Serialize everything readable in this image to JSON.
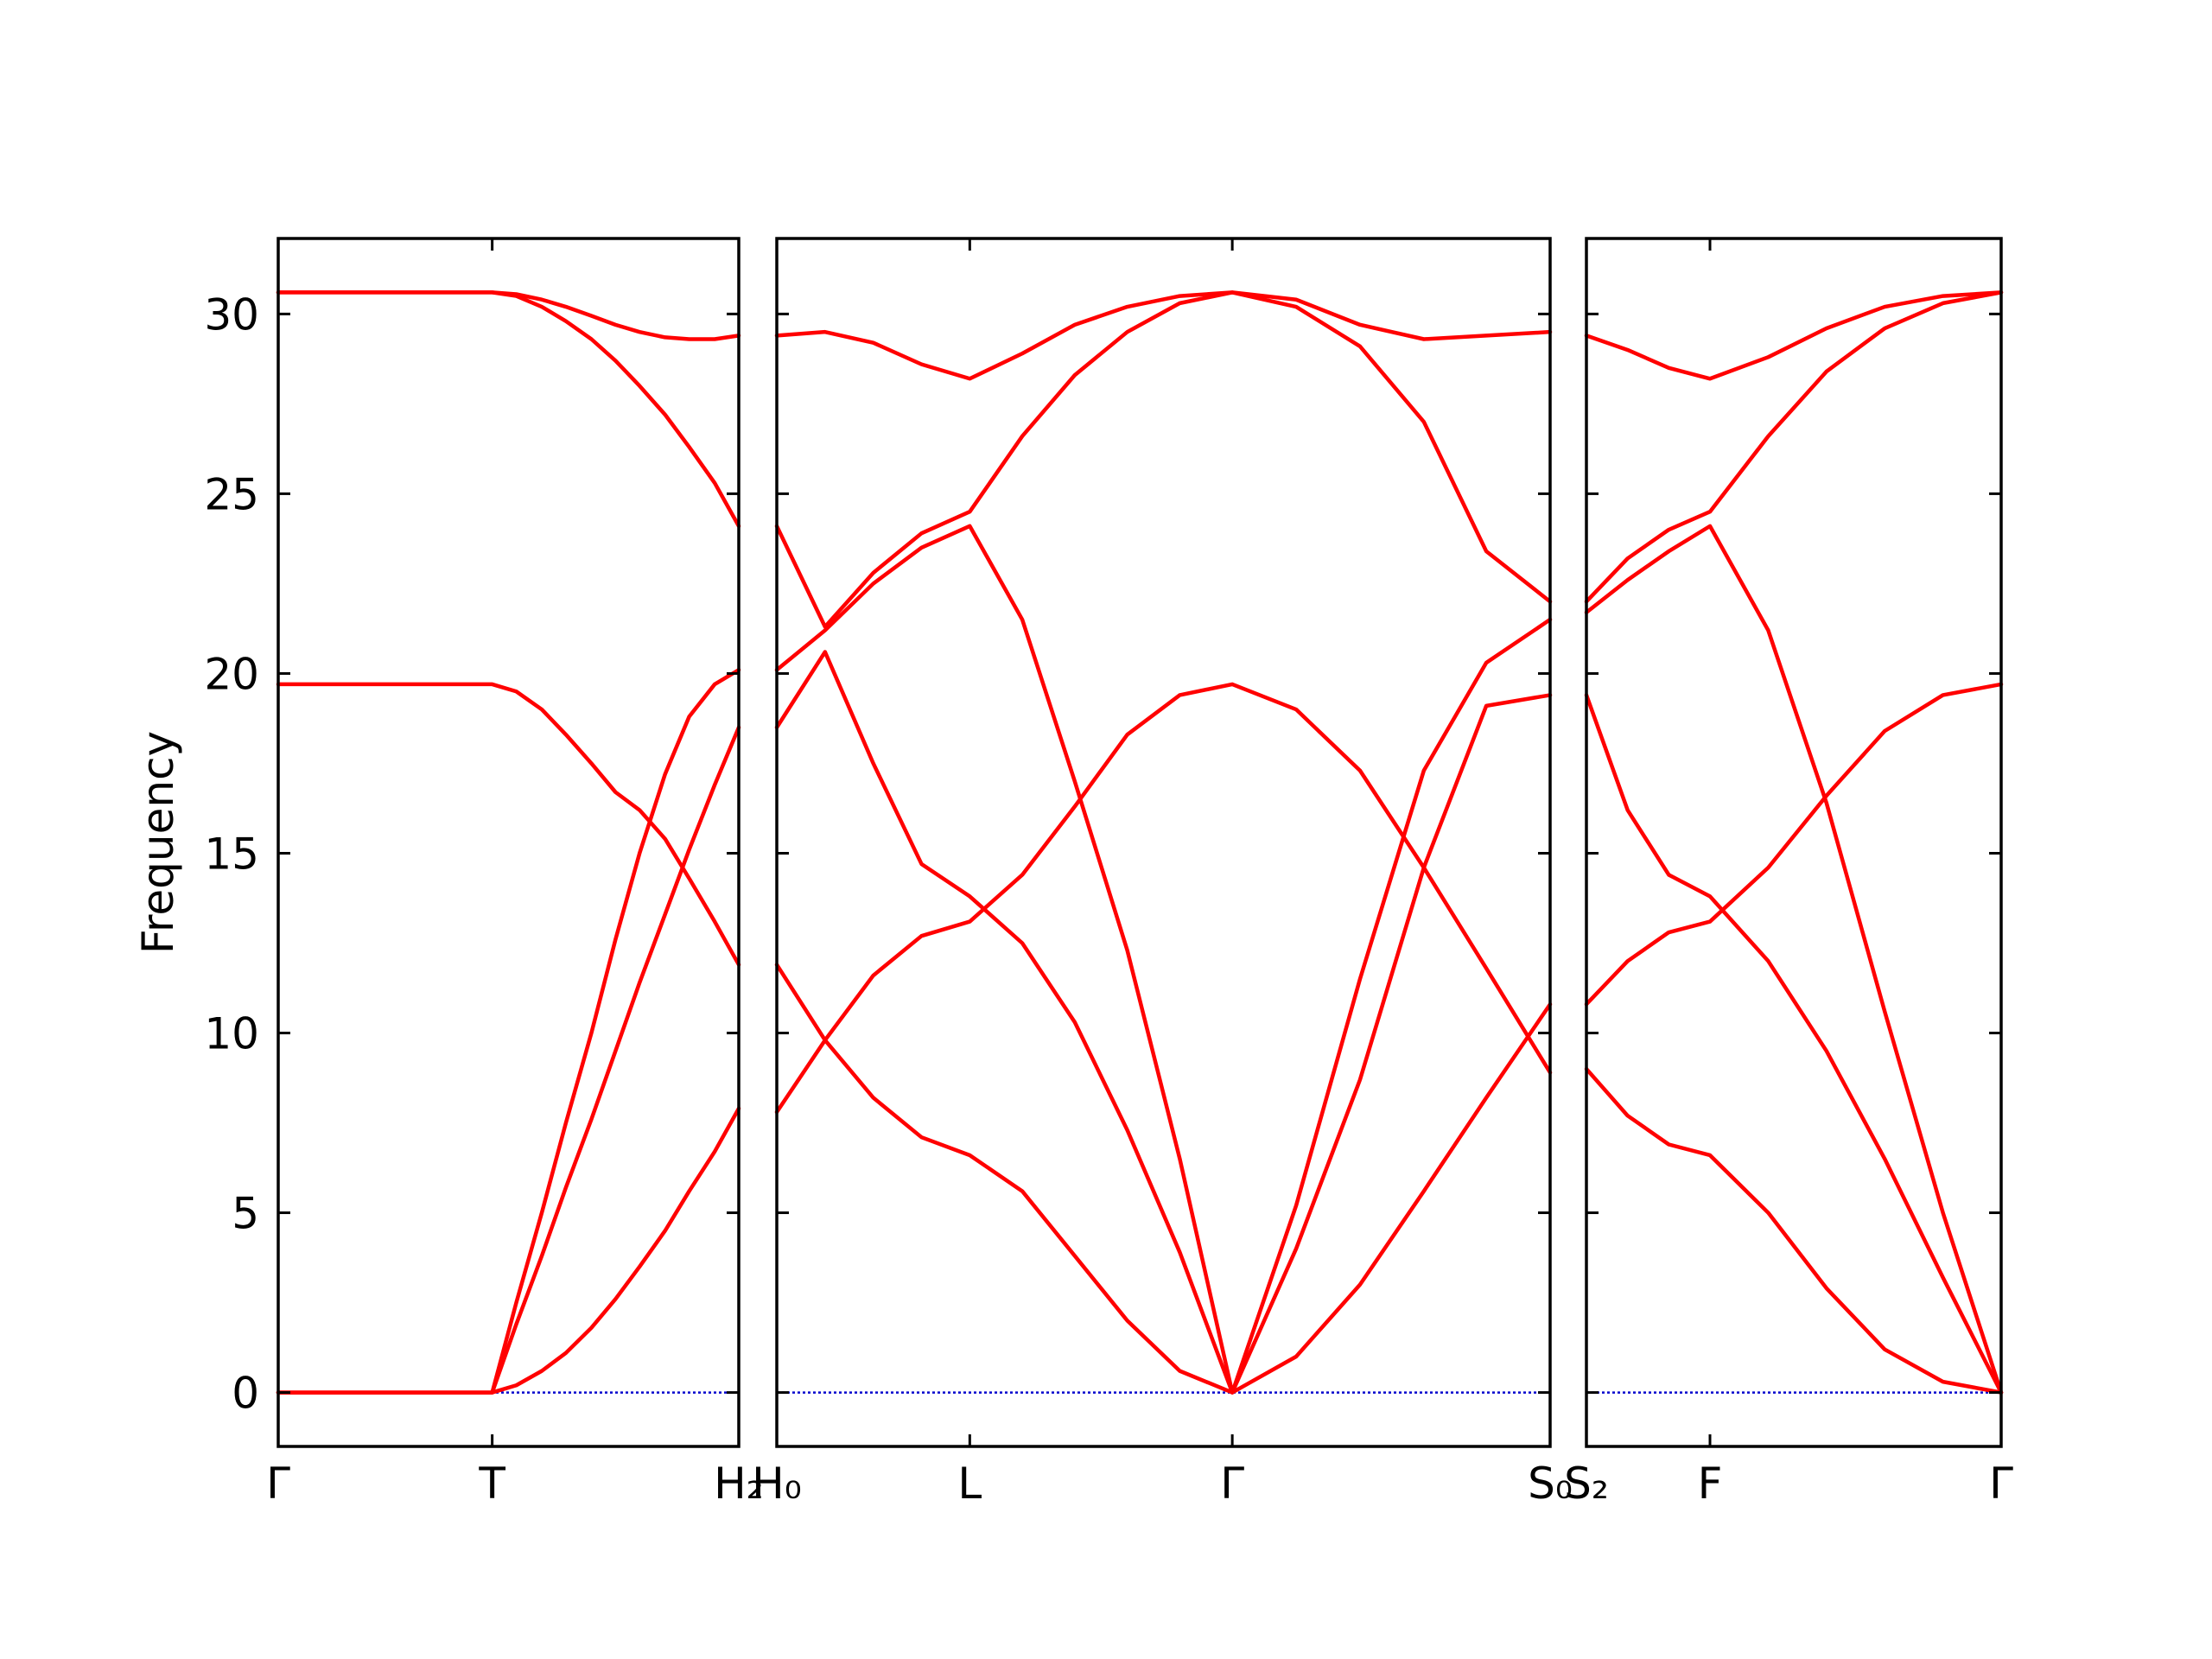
{
  "chart_data": [
    {
      "type": "line",
      "ylabel": "Frequency",
      "show_ytick_labels": true,
      "x": [
        0,
        1.51,
        1.68,
        1.86,
        2.03,
        2.21,
        2.38,
        2.55,
        2.73,
        2.9,
        3.08,
        3.25
      ],
      "xlim": [
        0,
        3.25
      ],
      "xticks": [
        {
          "value": 0,
          "label": "Γ"
        },
        {
          "value": 1.51,
          "label": "T"
        },
        {
          "value": 3.25,
          "label": "H₂"
        }
      ],
      "ylim": [
        -1.5,
        32.1
      ],
      "yticks": [
        0,
        5,
        10,
        15,
        20,
        25,
        30
      ],
      "zero_line": 0,
      "zero_line_color": "#0000cd",
      "series": [
        {
          "color": "#ff0000",
          "values": [
            0,
            0,
            0.2,
            0.6,
            1.1,
            1.8,
            2.6,
            3.5,
            4.5,
            5.6,
            6.7,
            7.9
          ]
        },
        {
          "color": "#ff0000",
          "values": [
            0,
            0,
            2.5,
            5.0,
            7.5,
            10.0,
            12.6,
            15.0,
            17.2,
            18.8,
            19.7,
            20.1
          ]
        },
        {
          "color": "#ff0000",
          "values": [
            0,
            0,
            1.9,
            3.8,
            5.7,
            7.6,
            9.5,
            11.4,
            13.3,
            15.1,
            16.9,
            18.5
          ]
        },
        {
          "color": "#ff0000",
          "values": [
            19.7,
            19.7,
            19.5,
            19.0,
            18.3,
            17.5,
            16.7,
            16.2,
            15.4,
            14.3,
            13.1,
            11.9
          ]
        },
        {
          "color": "#ff0000",
          "values": [
            30.6,
            30.6,
            30.5,
            30.2,
            29.8,
            29.3,
            28.7,
            28.0,
            27.2,
            26.3,
            25.3,
            24.1
          ]
        },
        {
          "color": "#ff0000",
          "values": [
            30.6,
            30.6,
            30.55,
            30.4,
            30.2,
            29.95,
            29.7,
            29.5,
            29.35,
            29.3,
            29.3,
            29.4
          ]
        }
      ]
    },
    {
      "type": "line",
      "show_ytick_labels": false,
      "x": [
        0,
        0.34,
        0.68,
        1.02,
        1.36,
        1.73,
        2.1,
        2.47,
        2.84,
        3.21,
        3.66,
        4.11,
        4.56,
        5.0,
        5.45
      ],
      "xlim": [
        0,
        5.45
      ],
      "xticks": [
        {
          "value": 0,
          "label": "H₀"
        },
        {
          "value": 1.36,
          "label": "L"
        },
        {
          "value": 3.21,
          "label": "Γ"
        },
        {
          "value": 5.45,
          "label": "S₀"
        }
      ],
      "ylim": [
        -1.5,
        32.1
      ],
      "yticks": [
        0,
        5,
        10,
        15,
        20,
        25,
        30
      ],
      "zero_line": 0,
      "zero_line_color": "#0000cd",
      "series": [
        {
          "color": "#ff0000",
          "values": [
            11.9,
            9.8,
            8.2,
            7.1,
            6.6,
            5.6,
            3.8,
            2.0,
            0.6,
            0,
            1.0,
            3.0,
            5.6,
            8.2,
            10.8
          ]
        },
        {
          "color": "#ff0000",
          "values": [
            7.8,
            9.8,
            11.6,
            12.7,
            13.1,
            14.4,
            16.3,
            18.3,
            19.4,
            19.7,
            19.0,
            17.3,
            14.6,
            11.8,
            8.9
          ]
        },
        {
          "color": "#ff0000",
          "values": [
            18.5,
            20.6,
            17.5,
            14.7,
            13.8,
            12.5,
            10.3,
            7.3,
            3.9,
            0,
            4.0,
            8.7,
            14.6,
            19.1,
            19.4
          ]
        },
        {
          "color": "#ff0000",
          "values": [
            20.1,
            21.2,
            22.5,
            23.5,
            24.1,
            21.5,
            17.0,
            12.3,
            6.5,
            0,
            5.2,
            11.5,
            17.3,
            20.3,
            21.5
          ]
        },
        {
          "color": "#ff0000",
          "values": [
            24.1,
            21.3,
            22.8,
            23.9,
            24.5,
            26.6,
            28.3,
            29.5,
            30.3,
            30.6,
            30.2,
            29.1,
            27.0,
            23.4,
            22.0
          ]
        },
        {
          "color": "#ff0000",
          "values": [
            29.4,
            29.5,
            29.2,
            28.6,
            28.2,
            28.9,
            29.7,
            30.2,
            30.5,
            30.6,
            30.4,
            29.7,
            29.3,
            29.4,
            29.5
          ]
        }
      ]
    },
    {
      "type": "line",
      "show_ytick_labels": false,
      "x": [
        0,
        0.29,
        0.58,
        0.87,
        1.28,
        1.69,
        2.1,
        2.51,
        2.92
      ],
      "xlim": [
        0,
        2.92
      ],
      "xticks": [
        {
          "value": 0,
          "label": "S₂"
        },
        {
          "value": 0.87,
          "label": "F"
        },
        {
          "value": 2.92,
          "label": "Γ"
        }
      ],
      "ylim": [
        -1.5,
        32.1
      ],
      "yticks": [
        0,
        5,
        10,
        15,
        20,
        25,
        30
      ],
      "zero_line": 0,
      "zero_line_color": "#0000cd",
      "series": [
        {
          "color": "#ff0000",
          "values": [
            29.4,
            29.0,
            28.5,
            28.2,
            28.8,
            29.6,
            30.2,
            30.5,
            30.6
          ]
        },
        {
          "color": "#ff0000",
          "values": [
            22.0,
            23.2,
            24.0,
            24.5,
            26.6,
            28.4,
            29.6,
            30.3,
            30.6
          ]
        },
        {
          "color": "#ff0000",
          "values": [
            21.7,
            22.6,
            23.4,
            24.1,
            21.2,
            16.4,
            10.6,
            5.0,
            0
          ]
        },
        {
          "color": "#ff0000",
          "values": [
            19.4,
            16.2,
            14.4,
            13.8,
            12.0,
            9.5,
            6.5,
            3.2,
            0
          ]
        },
        {
          "color": "#ff0000",
          "values": [
            10.8,
            12.0,
            12.8,
            13.1,
            14.6,
            16.6,
            18.4,
            19.4,
            19.7
          ]
        },
        {
          "color": "#ff0000",
          "values": [
            9.0,
            7.7,
            6.9,
            6.6,
            5.0,
            2.9,
            1.2,
            0.3,
            0
          ]
        }
      ]
    }
  ]
}
